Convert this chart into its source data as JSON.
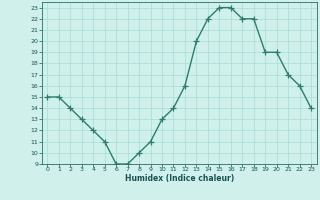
{
  "xlabel": "Humidex (Indice chaleur)",
  "x": [
    0,
    1,
    2,
    3,
    4,
    5,
    6,
    7,
    8,
    9,
    10,
    11,
    12,
    13,
    14,
    15,
    16,
    17,
    18,
    19,
    20,
    21,
    22,
    23
  ],
  "y": [
    15,
    15,
    14,
    13,
    12,
    11,
    9,
    9,
    10,
    11,
    13,
    14,
    16,
    20,
    22,
    23,
    23,
    22,
    22,
    19,
    19,
    17,
    16,
    14
  ],
  "ylim": [
    9,
    23.5
  ],
  "xlim": [
    -0.5,
    23.5
  ],
  "yticks": [
    9,
    10,
    11,
    12,
    13,
    14,
    15,
    16,
    17,
    18,
    19,
    20,
    21,
    22,
    23
  ],
  "xticks": [
    0,
    1,
    2,
    3,
    4,
    5,
    6,
    7,
    8,
    9,
    10,
    11,
    12,
    13,
    14,
    15,
    16,
    17,
    18,
    19,
    20,
    21,
    22,
    23
  ],
  "line_color": "#2e7d6e",
  "marker_color": "#2e7d6e",
  "bg_color": "#cff0eb",
  "grid_color": "#a8ddd7",
  "axis_color": "#2e6b6b",
  "tick_label_color": "#1a5252",
  "xlabel_color": "#1a5252",
  "line_width": 1.0,
  "marker_size": 4
}
